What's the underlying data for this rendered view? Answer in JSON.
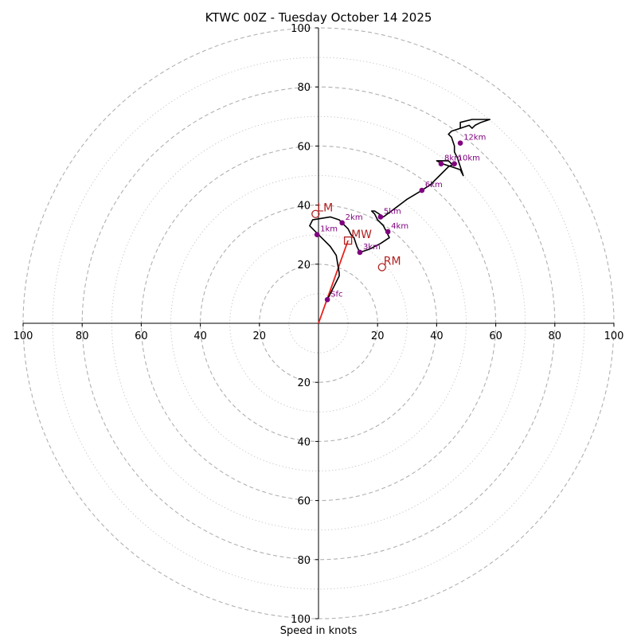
{
  "chart_data": {
    "type": "hodograph",
    "title": "KTWC 00Z - Tuesday October 14 2025",
    "xlabel": "Speed in knots",
    "xlim": [
      -100,
      100
    ],
    "ylim": [
      -100,
      100
    ],
    "ring_major": [
      20,
      40,
      60,
      80,
      100
    ],
    "ring_minor": [
      10,
      30,
      50,
      70,
      90
    ],
    "x_tick_labels": [
      "100",
      "80",
      "60",
      "40",
      "20",
      "20",
      "40",
      "60",
      "80",
      "100"
    ],
    "x_tick_values": [
      -100,
      -80,
      -60,
      -40,
      -20,
      20,
      40,
      60,
      80,
      100
    ],
    "y_tick_labels": [
      "100",
      "80",
      "60",
      "40",
      "20",
      "20",
      "40",
      "60",
      "80",
      "100"
    ],
    "y_tick_values": [
      100,
      80,
      60,
      40,
      20,
      -20,
      -40,
      -60,
      -80,
      -100
    ],
    "hodograph_trace": [
      [
        3,
        8
      ],
      [
        7,
        16
      ],
      [
        7,
        17
      ],
      [
        6,
        23
      ],
      [
        4,
        26
      ],
      [
        2,
        28
      ],
      [
        0,
        30
      ],
      [
        -2,
        32
      ],
      [
        -3,
        33
      ],
      [
        -2,
        35
      ],
      [
        4,
        36
      ],
      [
        7,
        35
      ],
      [
        8,
        34
      ],
      [
        10,
        32
      ],
      [
        11,
        30
      ],
      [
        12,
        29
      ],
      [
        13,
        26
      ],
      [
        14,
        24
      ],
      [
        17,
        25
      ],
      [
        21,
        27
      ],
      [
        24,
        29
      ],
      [
        23,
        31
      ],
      [
        22,
        33
      ],
      [
        20,
        35
      ],
      [
        19,
        37
      ],
      [
        18,
        38
      ],
      [
        19,
        38
      ],
      [
        22,
        36
      ],
      [
        26,
        39
      ],
      [
        30,
        42
      ],
      [
        35,
        45
      ],
      [
        38,
        47
      ],
      [
        41,
        50
      ],
      [
        44,
        53
      ],
      [
        46,
        54
      ],
      [
        45,
        54
      ],
      [
        44,
        55
      ],
      [
        42,
        55
      ],
      [
        41,
        55
      ],
      [
        40,
        55
      ],
      [
        42,
        54
      ],
      [
        45,
        53
      ],
      [
        48,
        52
      ],
      [
        49,
        50
      ],
      [
        48,
        53
      ],
      [
        47,
        56
      ],
      [
        46,
        58
      ],
      [
        46,
        60
      ],
      [
        45,
        63
      ],
      [
        44,
        64
      ],
      [
        45,
        65
      ],
      [
        48,
        66
      ],
      [
        51,
        67
      ],
      [
        52,
        66
      ],
      [
        53,
        67
      ],
      [
        55,
        68
      ],
      [
        58,
        69
      ],
      [
        55,
        69
      ],
      [
        52,
        69
      ],
      [
        48,
        68
      ],
      [
        48,
        66
      ]
    ],
    "height_markers": [
      {
        "label": "Sfc",
        "u": 3,
        "v": 8
      },
      {
        "label": "1km",
        "u": -0.5,
        "v": 30
      },
      {
        "label": "2km",
        "u": 8,
        "v": 34
      },
      {
        "label": "3km",
        "u": 14,
        "v": 24
      },
      {
        "label": "4km",
        "u": 23.5,
        "v": 31
      },
      {
        "label": "5km",
        "u": 21,
        "v": 36
      },
      {
        "label": "6km",
        "u": 35,
        "v": 45
      },
      {
        "label": "8km",
        "u": 41.5,
        "v": 54
      },
      {
        "label": "10km",
        "u": 46,
        "v": 54
      },
      {
        "label": "12km",
        "u": 48,
        "v": 61
      }
    ],
    "mean_wind": {
      "label": "MW",
      "u": 10,
      "v": 28
    },
    "left_mover": {
      "label": "LM",
      "u": -1,
      "v": 37
    },
    "right_mover": {
      "label": "RM",
      "u": 21.5,
      "v": 19
    },
    "colors": {
      "trace": "#000000",
      "markers": "#800080",
      "storm_motion": "#b22222",
      "mean_wind_line": "#e8201a",
      "ring": "#b0b0b0",
      "axis": "#000000"
    }
  }
}
